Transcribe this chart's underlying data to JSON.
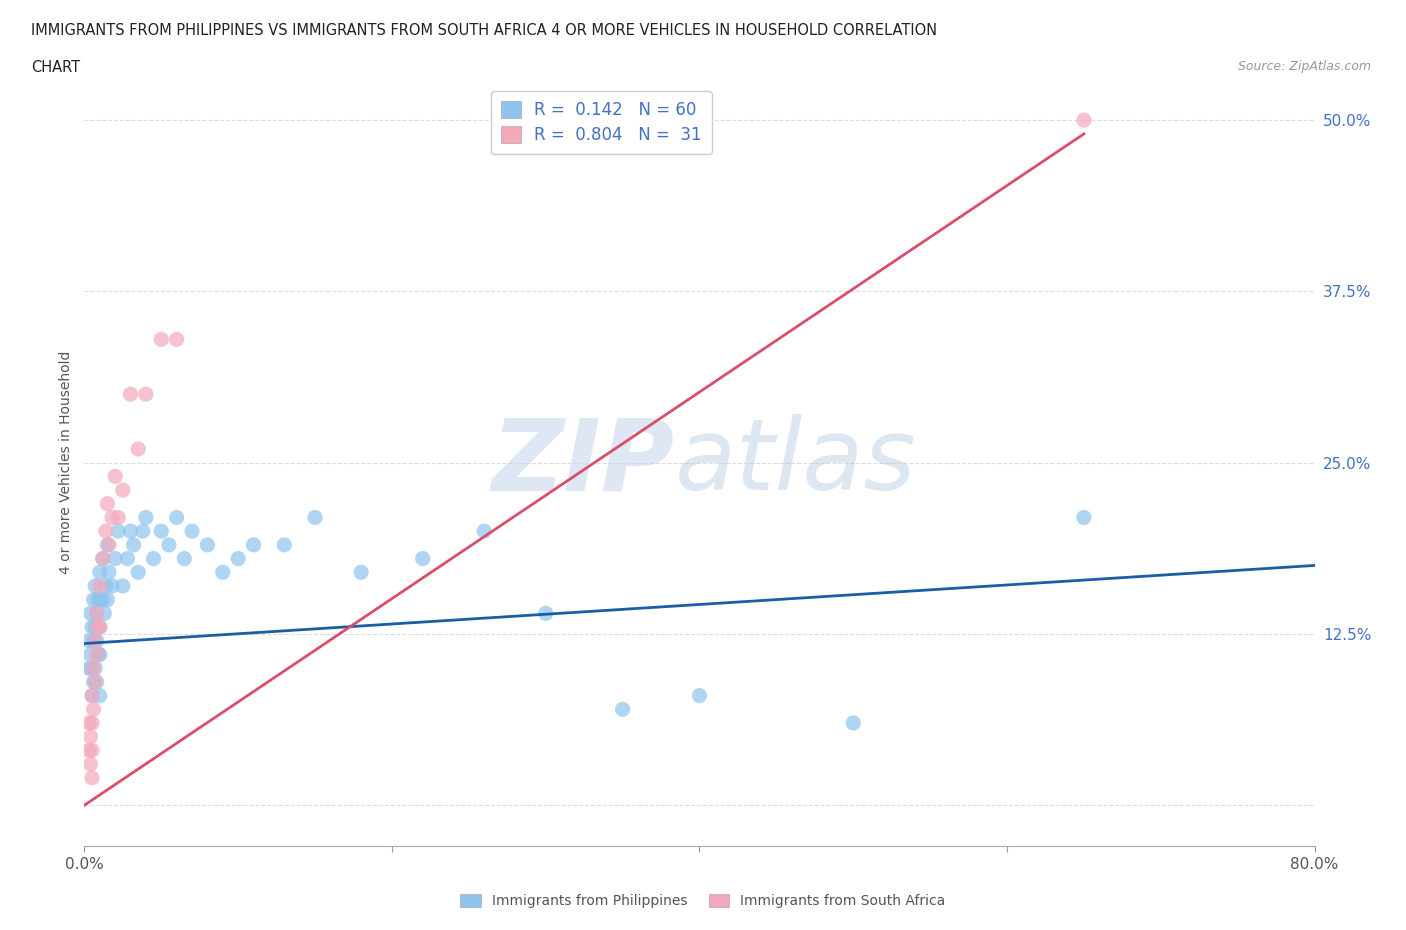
{
  "title_line1": "IMMIGRANTS FROM PHILIPPINES VS IMMIGRANTS FROM SOUTH AFRICA 4 OR MORE VEHICLES IN HOUSEHOLD CORRELATION",
  "title_line2": "CHART",
  "source": "Source: ZipAtlas.com",
  "ylabel": "4 or more Vehicles in Household",
  "xlim": [
    0.0,
    0.8
  ],
  "ylim": [
    -0.03,
    0.53
  ],
  "yticks": [
    0.0,
    0.125,
    0.25,
    0.375,
    0.5
  ],
  "ytick_labels": [
    "",
    "12.5%",
    "25.0%",
    "37.5%",
    "50.0%"
  ],
  "xticks": [
    0.0,
    0.2,
    0.4,
    0.6,
    0.8
  ],
  "xtick_labels": [
    "0.0%",
    "",
    "",
    "",
    "80.0%"
  ],
  "color_philippines": "#8EC4ED",
  "color_south_africa": "#F4A8BB",
  "line_color_philippines": "#1B5EA6",
  "line_color_south_africa": "#D94F6A",
  "R_philippines": 0.142,
  "N_philippines": 60,
  "R_south_africa": 0.804,
  "N_south_africa": 31,
  "phil_trend_x": [
    0.0,
    0.8
  ],
  "phil_trend_y": [
    0.118,
    0.175
  ],
  "sa_trend_x": [
    0.0,
    0.65
  ],
  "sa_trend_y": [
    0.0,
    0.49
  ],
  "philippines_x": [
    0.003,
    0.003,
    0.004,
    0.004,
    0.005,
    0.005,
    0.005,
    0.006,
    0.006,
    0.006,
    0.007,
    0.007,
    0.007,
    0.008,
    0.008,
    0.008,
    0.009,
    0.009,
    0.01,
    0.01,
    0.01,
    0.01,
    0.01,
    0.012,
    0.012,
    0.013,
    0.014,
    0.015,
    0.015,
    0.016,
    0.018,
    0.02,
    0.022,
    0.025,
    0.028,
    0.03,
    0.032,
    0.035,
    0.038,
    0.04,
    0.045,
    0.05,
    0.055,
    0.06,
    0.065,
    0.07,
    0.08,
    0.09,
    0.1,
    0.11,
    0.13,
    0.15,
    0.18,
    0.22,
    0.26,
    0.3,
    0.35,
    0.4,
    0.5,
    0.65
  ],
  "philippines_y": [
    0.12,
    0.1,
    0.14,
    0.11,
    0.13,
    0.1,
    0.08,
    0.15,
    0.12,
    0.09,
    0.16,
    0.13,
    0.1,
    0.14,
    0.12,
    0.09,
    0.15,
    0.11,
    0.17,
    0.15,
    0.13,
    0.11,
    0.08,
    0.18,
    0.15,
    0.14,
    0.16,
    0.19,
    0.15,
    0.17,
    0.16,
    0.18,
    0.2,
    0.16,
    0.18,
    0.2,
    0.19,
    0.17,
    0.2,
    0.21,
    0.18,
    0.2,
    0.19,
    0.21,
    0.18,
    0.2,
    0.19,
    0.17,
    0.18,
    0.19,
    0.19,
    0.21,
    0.17,
    0.18,
    0.2,
    0.14,
    0.07,
    0.08,
    0.06,
    0.21
  ],
  "south_africa_x": [
    0.003,
    0.003,
    0.004,
    0.004,
    0.005,
    0.005,
    0.005,
    0.005,
    0.006,
    0.006,
    0.007,
    0.007,
    0.008,
    0.008,
    0.009,
    0.01,
    0.01,
    0.012,
    0.014,
    0.015,
    0.016,
    0.018,
    0.02,
    0.022,
    0.025,
    0.03,
    0.035,
    0.04,
    0.05,
    0.06,
    0.65
  ],
  "south_africa_y": [
    0.06,
    0.04,
    0.05,
    0.03,
    0.08,
    0.06,
    0.04,
    0.02,
    0.1,
    0.07,
    0.12,
    0.09,
    0.14,
    0.11,
    0.13,
    0.16,
    0.13,
    0.18,
    0.2,
    0.22,
    0.19,
    0.21,
    0.24,
    0.21,
    0.23,
    0.3,
    0.26,
    0.3,
    0.34,
    0.34,
    0.5
  ]
}
